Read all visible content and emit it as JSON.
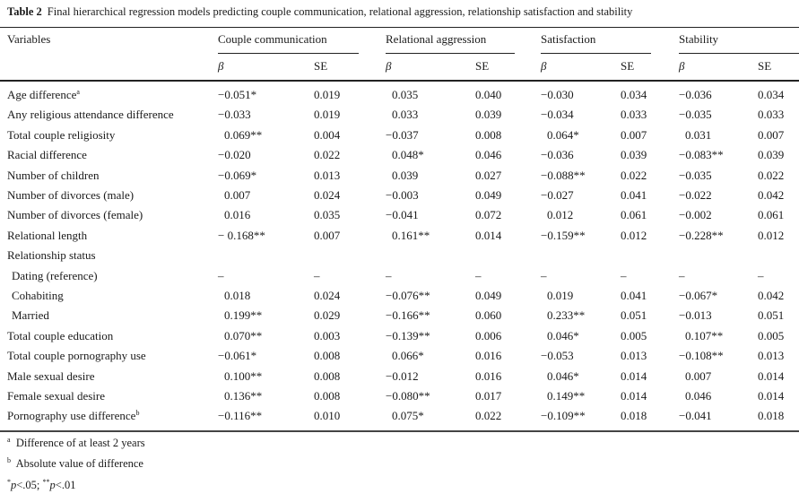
{
  "caption": {
    "label": "Table 2",
    "text": "Final hierarchical regression models predicting couple communication, relational aggression, relationship satisfaction and stability"
  },
  "header": {
    "variables": "Variables",
    "groups": [
      "Couple communication",
      "Relational aggression",
      "Satisfaction",
      "Stability"
    ],
    "beta": "β",
    "se": "SE"
  },
  "rows": [
    {
      "label": "Age difference",
      "sup": "a",
      "values": [
        "−0.051*",
        "0.019",
        "0.035",
        "0.040",
        "−0.030",
        "0.034",
        "−0.036",
        "0.034"
      ]
    },
    {
      "label": "Any religious attendance difference",
      "values": [
        "−0.033",
        "0.019",
        "0.033",
        "0.039",
        "−0.034",
        "0.033",
        "−0.035",
        "0.033"
      ]
    },
    {
      "label": "Total couple religiosity",
      "values": [
        "0.069**",
        "0.004",
        "−0.037",
        "0.008",
        "0.064*",
        "0.007",
        "0.031",
        "0.007"
      ]
    },
    {
      "label": "Racial difference",
      "values": [
        "−0.020",
        "0.022",
        "0.048*",
        "0.046",
        "−0.036",
        "0.039",
        "−0.083**",
        "0.039"
      ]
    },
    {
      "label": "Number of children",
      "values": [
        "−0.069*",
        "0.013",
        "0.039",
        "0.027",
        "−0.088**",
        "0.022",
        "−0.035",
        "0.022"
      ]
    },
    {
      "label": "Number of divorces (male)",
      "values": [
        "0.007",
        "0.024",
        "−0.003",
        "0.049",
        "−0.027",
        "0.041",
        "−0.022",
        "0.042"
      ]
    },
    {
      "label": "Number of divorces (female)",
      "values": [
        "0.016",
        "0.035",
        "−0.041",
        "0.072",
        "0.012",
        "0.061",
        "−0.002",
        "0.061"
      ]
    },
    {
      "label": "Relational length",
      "values": [
        "− 0.168**",
        "0.007",
        "0.161**",
        "0.014",
        "−0.159**",
        "0.012",
        "−0.228**",
        "0.012"
      ]
    },
    {
      "label": "Relationship status",
      "values": []
    },
    {
      "label": "Dating (reference)",
      "indent": true,
      "values": [
        "–",
        "–",
        "–",
        "–",
        "–",
        "–",
        "–",
        "–"
      ]
    },
    {
      "label": "Cohabiting",
      "indent": true,
      "values": [
        "0.018",
        "0.024",
        "−0.076**",
        "0.049",
        "0.019",
        "0.041",
        "−0.067*",
        "0.042"
      ]
    },
    {
      "label": "Married",
      "indent": true,
      "values": [
        "0.199**",
        "0.029",
        "−0.166**",
        "0.060",
        "0.233**",
        "0.051",
        "−0.013",
        "0.051"
      ]
    },
    {
      "label": "Total couple education",
      "values": [
        "0.070**",
        "0.003",
        "−0.139**",
        "0.006",
        "0.046*",
        "0.005",
        "0.107**",
        "0.005"
      ]
    },
    {
      "label": "Total couple pornography use",
      "values": [
        "−0.061*",
        "0.008",
        "0.066*",
        "0.016",
        "−0.053",
        "0.013",
        "−0.108**",
        "0.013"
      ]
    },
    {
      "label": "Male sexual desire",
      "values": [
        "0.100**",
        "0.008",
        "−0.012",
        "0.016",
        "0.046*",
        "0.014",
        "0.007",
        "0.014"
      ]
    },
    {
      "label": "Female sexual desire",
      "values": [
        "0.136**",
        "0.008",
        "−0.080**",
        "0.017",
        "0.149**",
        "0.014",
        "0.046",
        "0.014"
      ]
    },
    {
      "label": "Pornography use difference",
      "sup": "b",
      "values": [
        "−0.116**",
        "0.010",
        "0.075*",
        "0.022",
        "−0.109**",
        "0.018",
        "−0.041",
        "0.018"
      ]
    }
  ],
  "footnotes": [
    {
      "mark": "a",
      "text": "Difference of at least 2 years"
    },
    {
      "mark": "b",
      "text": "Absolute value of difference"
    }
  ],
  "significance": {
    "p1_stars": "*",
    "p1_text": "p",
    "p1_val": "<.05;",
    "p2_stars": "**",
    "p2_text": "p",
    "p2_val": "<.01"
  }
}
